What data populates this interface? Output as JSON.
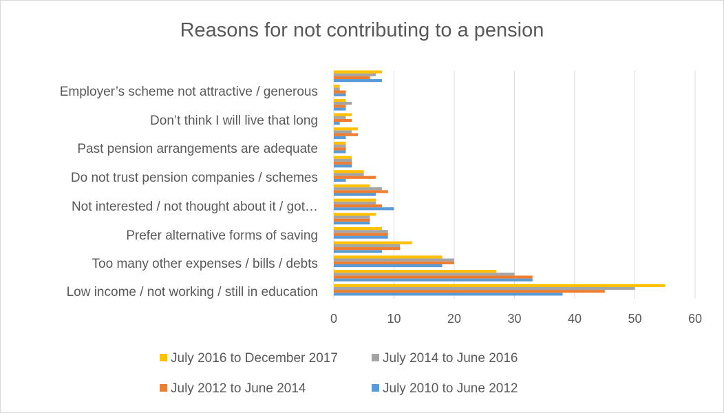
{
  "chart_data": {
    "type": "bar",
    "orientation": "horizontal",
    "title": "Reasons for not contributing to a pension",
    "xlim": [
      0,
      60
    ],
    "xticks": [
      0,
      10,
      20,
      30,
      40,
      50,
      60
    ],
    "grid": true,
    "legend_position": "bottom",
    "category_labels": [
      "Low income / not working / still in education",
      "Too many other expenses / bills / debts",
      "Prefer alternative forms of saving",
      "Not interested / not thought about it / got…",
      "Do not trust pension companies / schemes",
      "Past pension arrangements are adequate",
      "Don’t think I will live that long",
      "Employer’s scheme not attractive / generous"
    ],
    "categories_bottom_to_top": [
      "Low income / not working / still in education",
      "(unlabelled)",
      "Too many other expenses / bills / debts",
      "(unlabelled)",
      "Prefer alternative forms of saving",
      "(unlabelled)",
      "Not interested / not thought about it / got…",
      "(unlabelled)",
      "Do not trust pension companies / schemes",
      "(unlabelled)",
      "Past pension arrangements are adequate",
      "(unlabelled)",
      "Don’t think I will live that long",
      "(unlabelled)",
      "Employer’s scheme not attractive / generous",
      "(unlabelled)"
    ],
    "series": [
      {
        "name": "July 2010 to June 2012",
        "color": "#5b9bd5",
        "values": [
          38,
          33,
          18,
          8,
          9,
          6,
          10,
          7,
          2,
          3,
          2,
          2,
          1,
          2,
          2,
          8
        ]
      },
      {
        "name": "July 2012 to June 2014",
        "color": "#ed7d31",
        "values": [
          45,
          33,
          20,
          11,
          9,
          6,
          8,
          9,
          7,
          3,
          2,
          4,
          3,
          2,
          2,
          6
        ]
      },
      {
        "name": "July 2014 to June 2016",
        "color": "#a5a5a5",
        "values": [
          50,
          30,
          20,
          11,
          9,
          6,
          7,
          8,
          5,
          3,
          2,
          3,
          2,
          3,
          1,
          7
        ]
      },
      {
        "name": "July 2016 to December 2017",
        "color": "#ffc000",
        "values": [
          55,
          27,
          18,
          13,
          8,
          7,
          7,
          6,
          5,
          3,
          2,
          4,
          3,
          2,
          1,
          8
        ]
      }
    ],
    "legend_order": [
      "July 2016 to December 2017",
      "July 2014 to June 2016",
      "July 2012 to June 2014",
      "July 2010 to June 2012"
    ]
  }
}
